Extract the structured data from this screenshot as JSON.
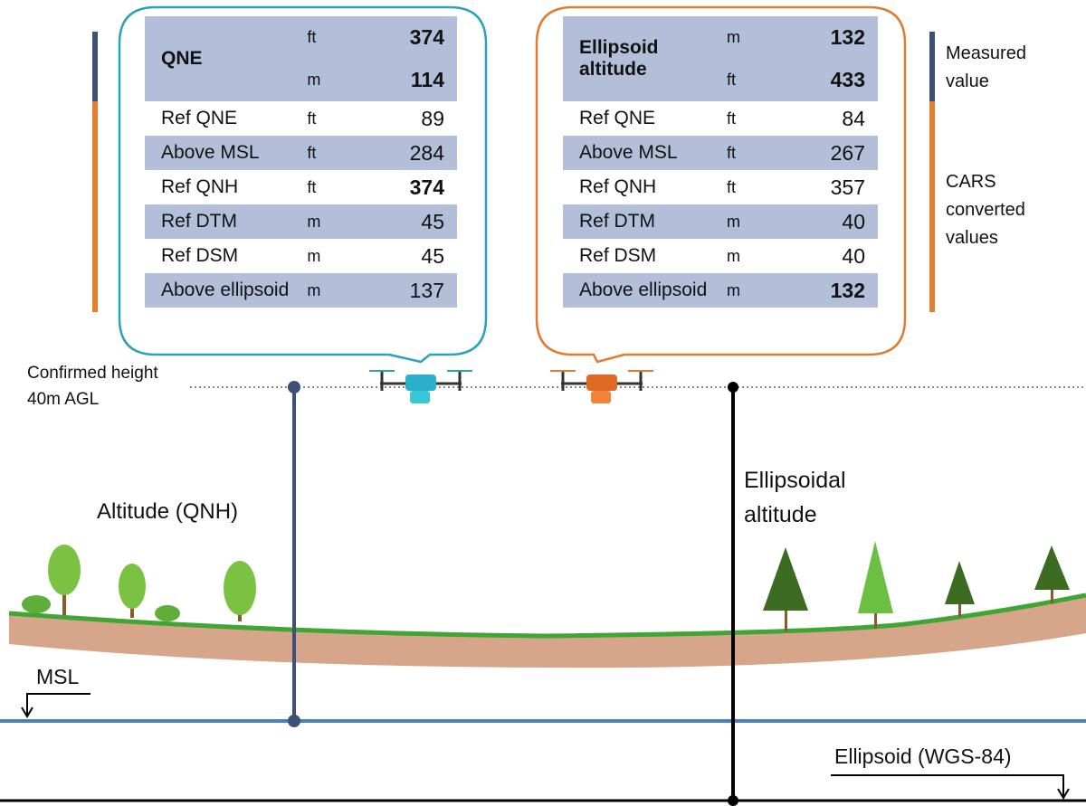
{
  "tables": [
    {
      "header": {
        "label": "QNE",
        "values": [
          {
            "unit": "ft",
            "value": 374
          },
          {
            "unit": "m",
            "value": 114
          }
        ]
      },
      "rows": [
        {
          "label": "Ref QNE",
          "unit": "ft",
          "value": 89
        },
        {
          "label": "Above MSL",
          "unit": "ft",
          "value": 284
        },
        {
          "label": "Ref QNH",
          "unit": "ft",
          "value": 374,
          "bold": true
        },
        {
          "label": "Ref DTM",
          "unit": "m",
          "value": 45
        },
        {
          "label": "Ref DSM",
          "unit": "m",
          "value": 45
        },
        {
          "label": "Above ellipsoid",
          "unit": "m",
          "value": 137
        }
      ]
    },
    {
      "header": {
        "label": "Ellipsoid altitude",
        "values": [
          {
            "unit": "m",
            "value": 132
          },
          {
            "unit": "ft",
            "value": 433
          }
        ]
      },
      "rows": [
        {
          "label": "Ref QNE",
          "unit": "ft",
          "value": 84
        },
        {
          "label": "Above MSL",
          "unit": "ft",
          "value": 267
        },
        {
          "label": "Ref QNH",
          "unit": "ft",
          "value": 357
        },
        {
          "label": "Ref DTM",
          "unit": "m",
          "value": 40
        },
        {
          "label": "Ref DSM",
          "unit": "m",
          "value": 40
        },
        {
          "label": "Above ellipsoid",
          "unit": "m",
          "value": 132,
          "bold": true
        }
      ]
    }
  ],
  "legend": [
    {
      "label": "Measured value",
      "color": "#3d5078"
    },
    {
      "label": "CARS converted values",
      "color": "#e57e2c"
    }
  ],
  "labels": {
    "confirmed": "Confirmed height 40m AGL",
    "altitude_qnh": "Altitude (QNH)",
    "ellipsoidal": "Ellipsoidal altitude",
    "msl": "MSL",
    "ellipsoid": "Ellipsoid (WGS-84)"
  }
}
